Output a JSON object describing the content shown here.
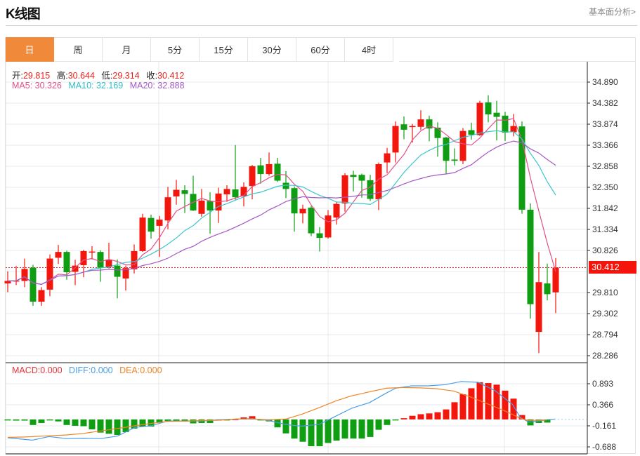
{
  "header": {
    "title": "K线图",
    "link": "基本面分析>"
  },
  "tabs": [
    {
      "label": "日",
      "active": true
    },
    {
      "label": "周",
      "active": false
    },
    {
      "label": "月",
      "active": false
    },
    {
      "label": "5分",
      "active": false
    },
    {
      "label": "15分",
      "active": false
    },
    {
      "label": "30分",
      "active": false
    },
    {
      "label": "60分",
      "active": false
    },
    {
      "label": "4时",
      "active": false
    }
  ],
  "quote": {
    "open_label": "开:",
    "open": "29.815",
    "high_label": "高:",
    "high": "30.644",
    "low_label": "低:",
    "low": "29.314",
    "close_label": "收:",
    "close": "30.412"
  },
  "ma_legend": {
    "ma5": "MA5: 30.326",
    "ma10": "MA10: 32.169",
    "ma20": "MA20: 32.888"
  },
  "macd_legend": {
    "macd": "MACD:0.000",
    "diff": "DIFF:0.000",
    "dea": "DEA:0.000"
  },
  "current_price": "30.412",
  "colors": {
    "up": "#f2160c",
    "down": "#0f9e12",
    "ma5": "#e2508a",
    "ma10": "#3cc6d0",
    "ma20": "#a458c4",
    "diff": "#4a9de6",
    "dea": "#f08424",
    "tab_active": "#f08a3a"
  },
  "chart_data": [
    {
      "type": "candlestick",
      "title": "K线图",
      "ylim": [
        28.286,
        34.89
      ],
      "yticks": [
        "34.890",
        "34.382",
        "33.874",
        "33.366",
        "32.858",
        "32.350",
        "31.842",
        "31.334",
        "30.826",
        "29.810",
        "29.302",
        "28.794",
        "28.286"
      ],
      "grid": true,
      "ma_periods": [
        5,
        10,
        20
      ],
      "ohlc": [
        [
          30.03,
          30.09,
          30.32,
          29.82
        ],
        [
          30.08,
          30.1,
          30.45,
          29.99
        ],
        [
          30.09,
          30.38,
          30.63,
          29.94
        ],
        [
          30.41,
          29.59,
          30.48,
          29.49
        ],
        [
          29.59,
          29.87,
          29.94,
          29.49
        ],
        [
          29.88,
          30.63,
          30.73,
          29.72
        ],
        [
          30.65,
          30.79,
          30.96,
          30.5
        ],
        [
          30.79,
          30.3,
          30.82,
          30.12
        ],
        [
          30.31,
          30.46,
          30.6,
          29.99
        ],
        [
          30.47,
          30.81,
          30.84,
          30.18
        ],
        [
          30.78,
          30.8,
          30.93,
          30.61
        ],
        [
          30.79,
          30.41,
          30.83,
          30.07
        ],
        [
          30.42,
          30.59,
          31.01,
          30.39
        ],
        [
          30.46,
          30.19,
          30.61,
          29.67
        ],
        [
          30.15,
          30.4,
          30.46,
          29.86
        ],
        [
          30.37,
          30.81,
          30.97,
          30.27
        ],
        [
          30.81,
          31.62,
          31.71,
          30.79
        ],
        [
          31.61,
          31.28,
          31.69,
          31.11
        ],
        [
          31.42,
          31.57,
          31.66,
          30.67
        ],
        [
          31.55,
          32.11,
          32.36,
          31.34
        ],
        [
          32.13,
          32.29,
          32.53,
          31.93
        ],
        [
          32.28,
          32.19,
          32.4,
          31.73
        ],
        [
          32.19,
          31.79,
          32.63,
          31.78
        ],
        [
          31.71,
          32.03,
          32.31,
          31.64
        ],
        [
          32.02,
          31.79,
          32.23,
          31.23
        ],
        [
          31.79,
          32.2,
          32.34,
          31.49
        ],
        [
          32.18,
          32.31,
          32.4,
          32.0
        ],
        [
          32.3,
          32.11,
          33.37,
          32.05
        ],
        [
          32.13,
          32.36,
          32.47,
          31.89
        ],
        [
          32.38,
          32.86,
          32.89,
          32.06
        ],
        [
          32.88,
          32.67,
          33.06,
          32.44
        ],
        [
          32.67,
          32.91,
          33.19,
          32.63
        ],
        [
          32.92,
          32.51,
          33.06,
          32.48
        ],
        [
          32.46,
          32.31,
          32.74,
          32.09
        ],
        [
          32.33,
          31.72,
          32.37,
          31.28
        ],
        [
          31.72,
          31.83,
          31.93,
          31.48
        ],
        [
          31.86,
          31.24,
          31.9,
          31.17
        ],
        [
          31.24,
          31.13,
          31.39,
          30.8
        ],
        [
          31.14,
          31.67,
          31.8,
          31.11
        ],
        [
          31.62,
          31.95,
          31.99,
          31.45
        ],
        [
          31.96,
          32.64,
          32.69,
          31.76
        ],
        [
          32.65,
          32.6,
          32.75,
          32.25
        ],
        [
          32.65,
          32.51,
          32.68,
          32.1
        ],
        [
          32.52,
          32.07,
          32.65,
          32.02
        ],
        [
          32.06,
          32.91,
          32.95,
          31.8
        ],
        [
          32.95,
          33.17,
          33.3,
          32.69
        ],
        [
          33.19,
          33.83,
          33.94,
          32.95
        ],
        [
          33.87,
          33.74,
          34.06,
          33.51
        ],
        [
          33.81,
          33.83,
          33.88,
          33.43
        ],
        [
          33.81,
          33.99,
          34.21,
          33.74
        ],
        [
          33.99,
          33.77,
          34.08,
          33.46
        ],
        [
          33.79,
          33.54,
          33.92,
          33.09
        ],
        [
          33.55,
          32.99,
          33.57,
          32.67
        ],
        [
          33.02,
          32.99,
          33.29,
          32.88
        ],
        [
          32.99,
          33.71,
          33.78,
          32.91
        ],
        [
          33.73,
          33.62,
          33.91,
          33.5
        ],
        [
          33.61,
          34.39,
          34.44,
          33.59
        ],
        [
          34.4,
          34.11,
          34.57,
          33.92
        ],
        [
          34.15,
          34.05,
          34.44,
          33.48
        ],
        [
          34.08,
          33.67,
          34.17,
          33.47
        ],
        [
          33.68,
          33.83,
          34.12,
          33.58
        ],
        [
          33.82,
          31.81,
          33.94,
          31.71
        ],
        [
          31.81,
          29.53,
          31.96,
          29.18
        ],
        [
          28.86,
          30.06,
          30.79,
          28.35
        ],
        [
          30.03,
          29.77,
          30.51,
          29.62
        ],
        [
          29.815,
          30.412,
          30.644,
          29.314
        ]
      ],
      "current_price": 30.412
    },
    {
      "type": "bar",
      "title": "MACD",
      "ylim": [
        -0.85,
        1.05
      ],
      "yticks": [
        "0.893",
        "0.366",
        "-0.161",
        "-0.688"
      ],
      "ytick_values": [
        0.893,
        0.366,
        -0.161,
        -0.688
      ],
      "histogram": [
        -0.02,
        -0.03,
        -0.03,
        -0.14,
        -0.09,
        -0.01,
        -0.05,
        -0.14,
        -0.16,
        -0.17,
        -0.25,
        -0.33,
        -0.36,
        -0.39,
        -0.32,
        -0.23,
        -0.18,
        -0.18,
        -0.08,
        -0.04,
        -0.03,
        -0.05,
        -0.1,
        -0.09,
        -0.09,
        -0.03,
        -0.01,
        0.01,
        0.05,
        0.08,
        -0.01,
        -0.05,
        -0.2,
        -0.35,
        -0.48,
        -0.56,
        -0.67,
        -0.67,
        -0.59,
        -0.53,
        -0.48,
        -0.48,
        -0.48,
        -0.44,
        -0.26,
        -0.14,
        -0.01,
        0.03,
        0.09,
        0.13,
        0.15,
        0.18,
        0.25,
        0.43,
        0.63,
        0.78,
        0.93,
        0.91,
        0.87,
        0.72,
        0.52,
        0.11,
        -0.15,
        -0.09,
        -0.08,
        null
      ],
      "diff": [
        [
          0,
          -0.46
        ],
        [
          2.9,
          -0.52
        ],
        [
          4.9,
          -0.43
        ],
        [
          7,
          -0.48
        ],
        [
          9,
          -0.47
        ],
        [
          11,
          -0.48
        ],
        [
          13,
          -0.42
        ],
        [
          15.1,
          -0.2
        ],
        [
          17,
          -0.16
        ],
        [
          19,
          -0.04
        ],
        [
          21,
          -0.04
        ],
        [
          23,
          -0.04
        ],
        [
          25,
          -0.01
        ],
        [
          27.1,
          0.01
        ],
        [
          29,
          0.02
        ],
        [
          31,
          -0.03
        ],
        [
          33,
          -0.13
        ],
        [
          34.9,
          -0.17
        ],
        [
          37,
          -0.12
        ],
        [
          38.9,
          0.08
        ],
        [
          40.8,
          0.28
        ],
        [
          42.9,
          0.42
        ],
        [
          44.9,
          0.66
        ],
        [
          46,
          0.78
        ],
        [
          47.9,
          0.84
        ],
        [
          49.9,
          0.84
        ],
        [
          51.9,
          0.87
        ],
        [
          53.8,
          0.95
        ],
        [
          55.8,
          0.93
        ],
        [
          57.8,
          0.72
        ],
        [
          59.9,
          0.37
        ],
        [
          60.8,
          0.05
        ],
        [
          61.8,
          -0.07
        ],
        [
          64,
          -0.01
        ],
        [
          64.9,
          0.01
        ]
      ],
      "dea": [
        [
          0,
          -0.45
        ],
        [
          2,
          -0.44
        ],
        [
          4.9,
          -0.41
        ],
        [
          7,
          -0.39
        ],
        [
          9,
          -0.35
        ],
        [
          11,
          -0.29
        ],
        [
          13,
          -0.23
        ],
        [
          15.1,
          -0.16
        ],
        [
          17,
          -0.1
        ],
        [
          19,
          -0.05
        ],
        [
          21,
          -0.04
        ],
        [
          25,
          -0.02
        ],
        [
          27.1,
          0.01
        ],
        [
          29,
          0.01
        ],
        [
          31,
          -0.01
        ],
        [
          33,
          0.01
        ],
        [
          34.9,
          0.13
        ],
        [
          37,
          0.3
        ],
        [
          38.9,
          0.46
        ],
        [
          40.8,
          0.59
        ],
        [
          42.9,
          0.69
        ],
        [
          44.9,
          0.78
        ],
        [
          46.9,
          0.8
        ],
        [
          48.9,
          0.79
        ],
        [
          50.8,
          0.77
        ],
        [
          52.9,
          0.71
        ],
        [
          54.8,
          0.57
        ],
        [
          56.8,
          0.4
        ],
        [
          58.9,
          0.22
        ],
        [
          60.8,
          0.03
        ],
        [
          61.8,
          -0.03
        ],
        [
          64,
          -0.01
        ]
      ],
      "legend": [
        "MACD",
        "DIFF",
        "DEA"
      ]
    }
  ]
}
